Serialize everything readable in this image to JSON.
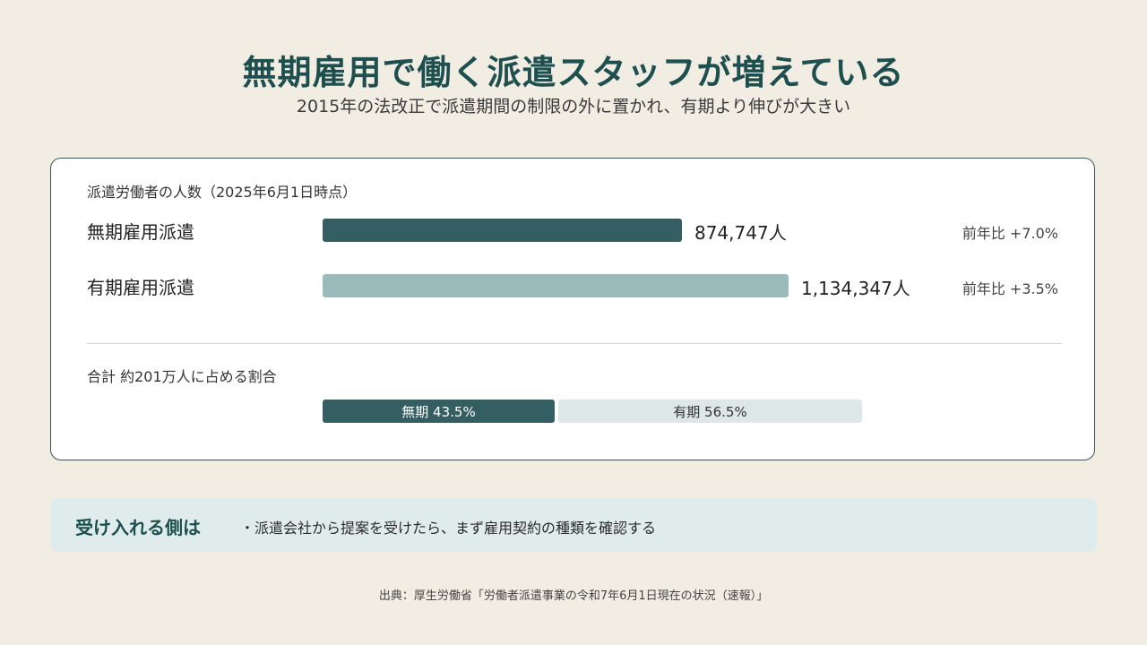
{
  "header": {
    "title": "無期雇用で働く派遣スタッフが増えている",
    "subtitle": "2015年の法改正で派遣期間の制限の外に置かれ、有期より伸びが大きい"
  },
  "chart_data": [
    {
      "type": "bar",
      "title": "派遣労働者の人数（2025年6月1日時点）",
      "categories": [
        "無期雇用派遣",
        "有期雇用派遣"
      ],
      "values": [
        874747,
        1134347
      ],
      "value_labels": [
        "874,747人",
        "1,134,347人"
      ],
      "yoy_labels": [
        "前年比 +7.0%",
        "前年比 +3.5%"
      ],
      "colors": [
        "#355e62",
        "#9bbabc"
      ]
    },
    {
      "type": "bar",
      "title": "合計 約201万人に占める割合",
      "categories": [
        "無期",
        "有期"
      ],
      "values": [
        43.5,
        56.5
      ],
      "segment_labels": [
        "無期 43.5%",
        "有期 56.5%"
      ],
      "colors": [
        "#355e62",
        "#dde7e8"
      ],
      "text_colors": [
        "#ffffff",
        "#333333"
      ]
    }
  ],
  "callout": {
    "title": "受け入れる側は",
    "text": "・派遣会社から提案を受けたら、まず雇用契約の種類を確認する"
  },
  "source": "出典：厚生労働省「労働者派遣事業の令和7年6月1日現在の状況（速報）」"
}
